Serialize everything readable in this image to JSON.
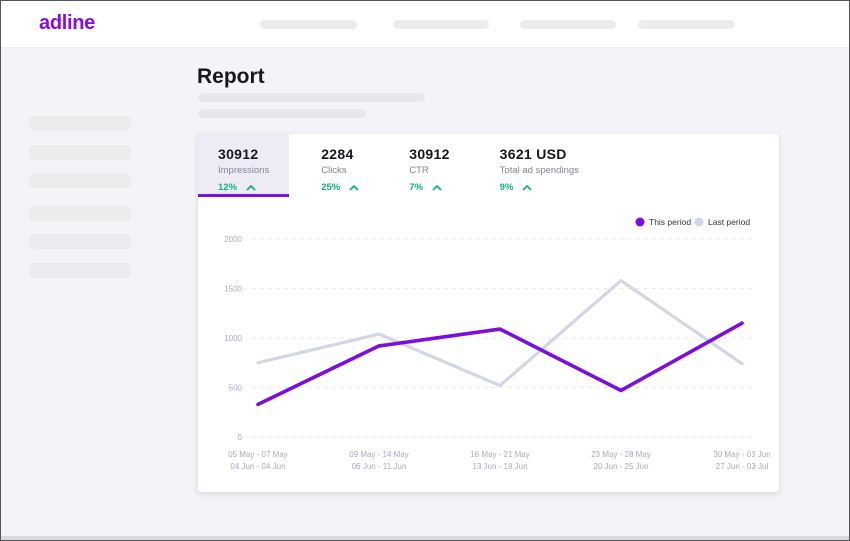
{
  "brand": {
    "logo_text": "adline"
  },
  "page": {
    "title": "Report"
  },
  "colors": {
    "accent_purple": "#7B0DE0",
    "logo_purple": "#8A0BE3",
    "positive_green": "#12B478",
    "last_period_gray": "#D3D6E6",
    "active_tab_bg": "#EDEBF5",
    "active_tab_underline": "#7716DF",
    "page_bg": "#F3F4F7"
  },
  "stats": {
    "tabs": [
      {
        "value": "30912",
        "label": "Impressions",
        "delta": "12%",
        "trend": "up",
        "active": true
      },
      {
        "value": "2284",
        "label": "Clicks",
        "delta": "25%",
        "trend": "up",
        "active": false
      },
      {
        "value": "30912",
        "label": "CTR",
        "delta": "7%",
        "trend": "up",
        "active": false
      },
      {
        "value": "3621 USD",
        "label": "Total ad spendings",
        "delta": "9%",
        "trend": "up",
        "active": false
      }
    ]
  },
  "chart_data": {
    "type": "line",
    "title": "",
    "xlabel": "",
    "ylabel": "",
    "x_tick_labels": [
      [
        "05 May - 07 May",
        "04 Jun - 04 Jun"
      ],
      [
        "09 May - 14 May",
        "06 Jun - 11 Jun"
      ],
      [
        "16 May - 21 May",
        "13 Jun - 18 Jun"
      ],
      [
        "23 May - 28 May",
        "20 Jun - 25 Jun"
      ],
      [
        "30 May - 03 Jun",
        "27 Jun - 03 Jul"
      ]
    ],
    "y_ticks": [
      0,
      500,
      1000,
      1500,
      2000
    ],
    "ylim": [
      0,
      2000
    ],
    "grid": "horizontal-dashed",
    "legend_position": "top-right",
    "series": [
      {
        "name": "This period",
        "color": "#7B0DE0",
        "values": [
          330,
          920,
          1090,
          470,
          1150
        ]
      },
      {
        "name": "Last period",
        "color": "#D3D6E6",
        "values": [
          750,
          1040,
          520,
          1580,
          740
        ]
      }
    ]
  }
}
